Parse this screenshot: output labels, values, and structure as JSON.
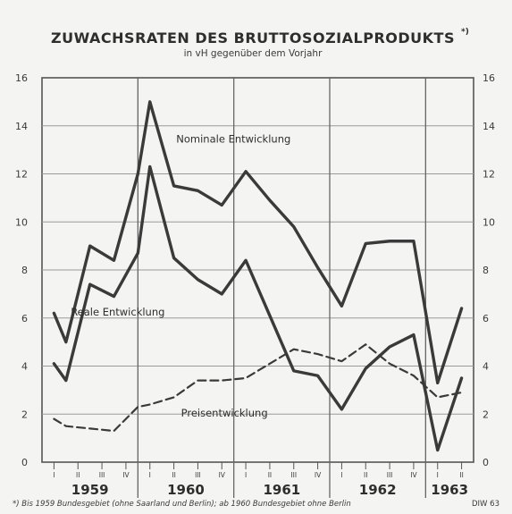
{
  "title": "ZUWACHSRATEN DES BRUTTOSOZIALPRODUKTS",
  "title_marker": "*)",
  "subtitle": "in vH gegenüber dem Vorjahr",
  "footnote": "*) Bis 1959 Bundesgebiet (ohne Saarland und Berlin); ab 1960 Bundesgebiet ohne Berlin",
  "source": "DIW 63",
  "chart_data": {
    "type": "line",
    "title": "ZUWACHSRATEN DES BRUTTOSOZIALPRODUKTS",
    "subtitle": "in vH gegenüber dem Vorjahr",
    "ylim": [
      0,
      16
    ],
    "yticks": [
      0,
      2,
      4,
      6,
      8,
      10,
      12,
      14,
      16
    ],
    "years": [
      "1959",
      "1960",
      "1961",
      "1962",
      "1963"
    ],
    "quarter_labels": [
      "I",
      "II",
      "III",
      "IV",
      "I",
      "II",
      "III",
      "IV",
      "I",
      "II",
      "III",
      "IV",
      "I",
      "II",
      "III",
      "IV",
      "I",
      "II"
    ],
    "grid": true,
    "series": [
      {
        "name": "Nominale Entwicklung",
        "style": "solid",
        "x": [
          0,
          0.5,
          1.5,
          2.5,
          3.5,
          4,
          5,
          6,
          7,
          8,
          9,
          10,
          11,
          12,
          13,
          14,
          15,
          16,
          17
        ],
        "values": [
          6.2,
          5.0,
          9.0,
          8.4,
          12.0,
          15.0,
          11.5,
          11.3,
          10.7,
          12.1,
          10.9,
          9.8,
          8.1,
          6.5,
          9.1,
          9.2,
          9.2,
          3.3,
          6.4
        ]
      },
      {
        "name": "Reale Entwicklung",
        "style": "solid",
        "x": [
          0,
          0.5,
          1.5,
          2.5,
          3.5,
          4,
          5,
          6,
          7,
          8,
          9,
          10,
          11,
          12,
          13,
          14,
          15,
          16,
          17
        ],
        "values": [
          4.1,
          3.4,
          7.4,
          6.9,
          8.7,
          12.3,
          8.5,
          7.6,
          7.0,
          8.4,
          6.1,
          3.8,
          3.6,
          2.2,
          3.9,
          4.8,
          5.3,
          0.5,
          3.5
        ]
      },
      {
        "name": "Preisentwicklung",
        "style": "dashed",
        "x": [
          0,
          0.5,
          1.5,
          2.5,
          3.5,
          4,
          5,
          6,
          7,
          8,
          9,
          10,
          11,
          12,
          13,
          14,
          15,
          16,
          17
        ],
        "values": [
          1.8,
          1.5,
          1.4,
          1.3,
          2.3,
          2.4,
          2.7,
          3.4,
          3.4,
          3.5,
          4.1,
          4.7,
          4.5,
          4.2,
          4.9,
          4.1,
          3.6,
          2.7,
          2.9
        ]
      }
    ],
    "annotations": [
      {
        "text": "Nominale Entwicklung",
        "x": 5.1,
        "y": 13.3
      },
      {
        "text": "Reale Entwicklung",
        "x": 0.7,
        "y": 6.1
      },
      {
        "text": "Preisentwicklung",
        "x": 5.3,
        "y": 1.9
      }
    ]
  }
}
